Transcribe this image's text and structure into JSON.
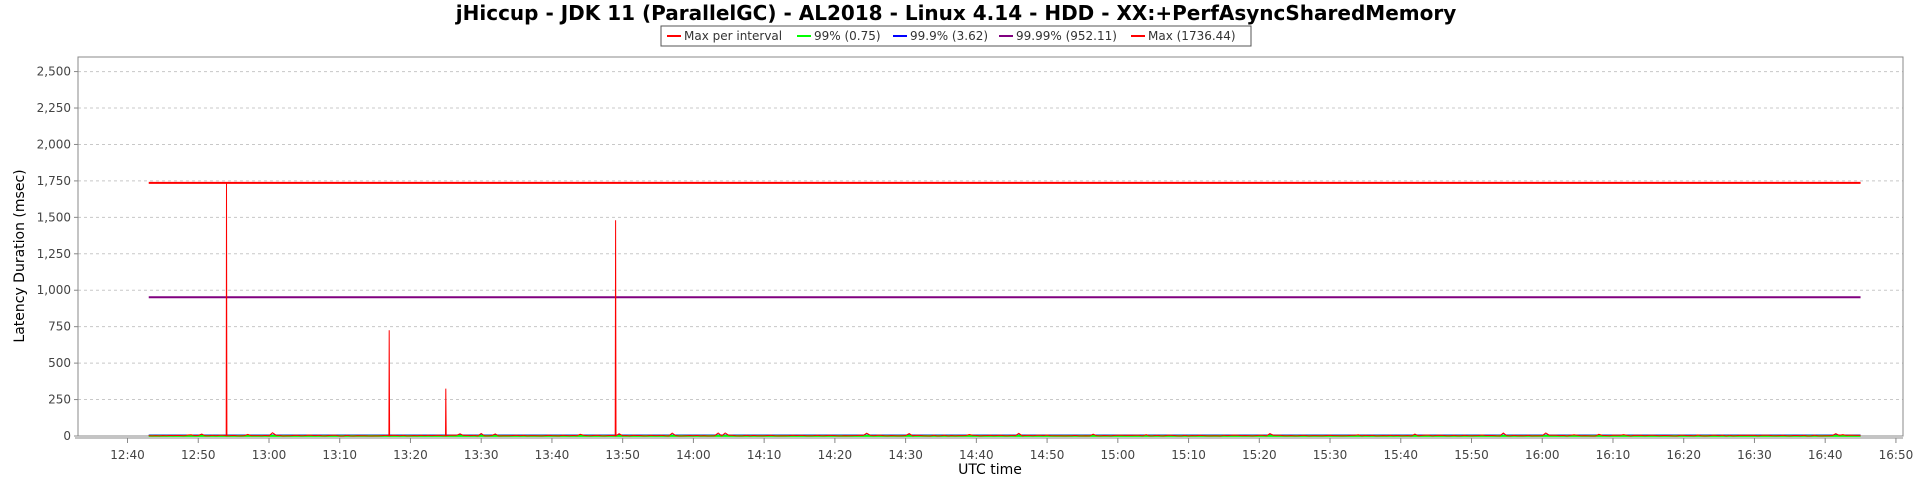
{
  "chart_data": {
    "type": "line",
    "title": "jHiccup - JDK 11 (ParallelGC) - AL2018 - Linux 4.14 - HDD - XX:+PerfAsyncSharedMemory",
    "xlabel": "UTC time",
    "ylabel": "Latency Duration (msec)",
    "ylim": [
      0,
      2600
    ],
    "y_ticks": [
      0,
      250,
      500,
      750,
      1000,
      1250,
      1500,
      1750,
      2000,
      2250,
      2500
    ],
    "y_tick_labels": [
      "0",
      "250",
      "500",
      "750",
      "1,000",
      "1,250",
      "1,500",
      "1,750",
      "2,000",
      "2,250",
      "2,500"
    ],
    "x_tick_labels": [
      "12:40",
      "12:50",
      "13:00",
      "13:10",
      "13:20",
      "13:30",
      "13:40",
      "13:50",
      "14:00",
      "14:10",
      "14:20",
      "14:30",
      "14:40",
      "14:50",
      "15:00",
      "15:10",
      "15:20",
      "15:30",
      "15:40",
      "15:50",
      "16:00",
      "16:10",
      "16:20",
      "16:30",
      "16:40",
      "16:50"
    ],
    "x_range": [
      "12:33",
      "16:51"
    ],
    "x_span": [
      "12:43",
      "16:45"
    ],
    "grid": true,
    "legend_position": "top-center",
    "series": [
      {
        "name": "Max per interval",
        "color": "#ff0000",
        "baseline": 5,
        "spikes": [
          {
            "x": "12:54",
            "y": 1736
          },
          {
            "x": "13:17",
            "y": 725
          },
          {
            "x": "13:25",
            "y": 325
          },
          {
            "x": "13:49",
            "y": 1480
          }
        ]
      },
      {
        "name": "99% (0.75)",
        "color": "#00ff00",
        "value": 0.75
      },
      {
        "name": "99.9% (3.62)",
        "color": "#0000ff",
        "value": 3.62
      },
      {
        "name": "99.99% (952.11)",
        "color": "#800080",
        "value": 952.11
      },
      {
        "name": "Max (1736.44)",
        "color": "#ff0000",
        "value": 1736.44
      }
    ]
  }
}
